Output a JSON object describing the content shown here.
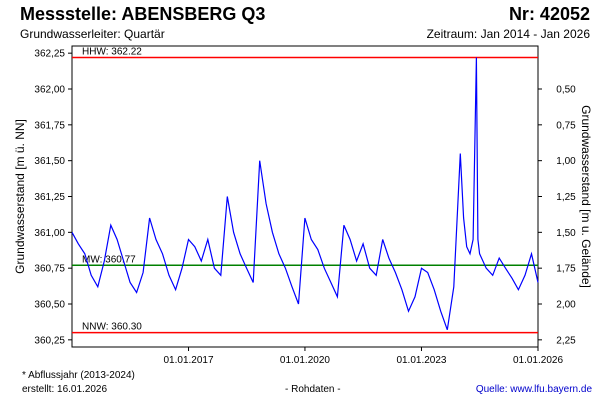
{
  "header": {
    "title_left": "Messstelle: ABENSBERG Q3",
    "title_right": "Nr: 42052",
    "subtitle_left": "Grundwasserleiter: Quartär",
    "subtitle_right": "Zeitraum: Jan 2014 - Jan 2026"
  },
  "footer": {
    "footnote": "* Abflussjahr (2013-2024)",
    "created": "erstellt:  16.01.2026",
    "rawdata": "- Rohdaten -",
    "source": "Quelle:  www.lfu.bayern.de"
  },
  "colors": {
    "series": "#0000ff",
    "hhw": "#ff0000",
    "nnw": "#ff0000",
    "mw": "#008000"
  },
  "chart_data": {
    "type": "line",
    "ylabel": "Grundwasserstand [m ü. NN]",
    "ylabel_right": "Grundwasserstand [m u. Gelände]",
    "ylim": [
      360.2,
      362.3
    ],
    "y_ticks": [
      "362,25",
      "362,00",
      "361,75",
      "361,50",
      "361,25",
      "361,00",
      "360,75",
      "360,50",
      "360,25"
    ],
    "y_tick_values": [
      362.25,
      362.0,
      361.75,
      361.5,
      361.25,
      361.0,
      360.75,
      360.5,
      360.25
    ],
    "y2_ticks": [
      "0,50",
      "0,75",
      "1,00",
      "1,25",
      "1,50",
      "1,75",
      "2,00",
      "2,25"
    ],
    "y2_tick_values_nn": [
      362.0,
      361.75,
      361.5,
      361.25,
      361.0,
      360.75,
      360.5,
      360.25
    ],
    "xlim": [
      "2014-01-01",
      "2026-01-01"
    ],
    "x_ticks": [
      "01.01.2017",
      "01.01.2020",
      "01.01.2023",
      "01.01.2026"
    ],
    "x_tick_dates": [
      "2017-01-01",
      "2020-01-01",
      "2023-01-01",
      "2026-01-01"
    ],
    "reference_lines": [
      {
        "label": "HHW: 362.22",
        "value": 362.22,
        "color": "#ff0000"
      },
      {
        "label": "MW: 360.77",
        "value": 360.77,
        "color": "#008000"
      },
      {
        "label": "NNW: 360.30",
        "value": 360.3,
        "color": "#ff0000"
      }
    ],
    "series": [
      {
        "x": [
          "2014-01-01",
          "2014-03-01",
          "2014-05-01",
          "2014-07-01",
          "2014-09-01",
          "2014-11-01",
          "2015-01-01",
          "2015-03-01",
          "2015-05-01",
          "2015-07-01",
          "2015-09-01",
          "2015-11-01",
          "2016-01-01",
          "2016-03-01",
          "2016-05-01",
          "2016-07-01",
          "2016-09-01",
          "2016-11-01",
          "2017-01-01",
          "2017-03-01",
          "2017-05-01",
          "2017-07-01",
          "2017-09-01",
          "2017-11-01",
          "2018-01-01",
          "2018-03-01",
          "2018-05-01",
          "2018-07-01",
          "2018-09-01",
          "2018-11-01",
          "2019-01-01",
          "2019-03-01",
          "2019-05-01",
          "2019-07-01",
          "2019-09-01",
          "2019-11-01",
          "2020-01-01",
          "2020-03-01",
          "2020-05-01",
          "2020-07-01",
          "2020-09-01",
          "2020-11-01",
          "2021-01-01",
          "2021-03-01",
          "2021-05-01",
          "2021-07-01",
          "2021-09-01",
          "2021-11-01",
          "2022-01-01",
          "2022-03-01",
          "2022-05-01",
          "2022-07-01",
          "2022-09-01",
          "2022-11-01",
          "2023-01-01",
          "2023-03-01",
          "2023-05-01",
          "2023-07-01",
          "2023-09-01",
          "2023-11-01",
          "2024-01-01",
          "2024-02-01",
          "2024-03-01",
          "2024-04-01",
          "2024-05-01",
          "2024-06-01",
          "2024-06-15",
          "2024-07-01",
          "2024-09-01",
          "2024-11-01",
          "2025-01-01",
          "2025-03-01",
          "2025-05-01",
          "2025-07-01",
          "2025-09-01",
          "2025-11-01",
          "2026-01-01"
        ],
        "y": [
          361.0,
          360.92,
          360.85,
          360.7,
          360.62,
          360.8,
          361.05,
          360.95,
          360.8,
          360.65,
          360.58,
          360.72,
          361.1,
          360.95,
          360.85,
          360.7,
          360.6,
          360.75,
          360.95,
          360.9,
          360.8,
          360.95,
          360.75,
          360.7,
          361.25,
          361.0,
          360.85,
          360.75,
          360.65,
          361.5,
          361.2,
          361.0,
          360.85,
          360.75,
          360.62,
          360.5,
          361.1,
          360.95,
          360.88,
          360.75,
          360.65,
          360.55,
          361.05,
          360.95,
          360.8,
          360.92,
          360.75,
          360.7,
          360.95,
          360.82,
          360.72,
          360.6,
          360.45,
          360.55,
          360.75,
          360.72,
          360.6,
          360.45,
          360.32,
          360.62,
          361.55,
          361.1,
          360.9,
          360.85,
          360.95,
          362.22,
          360.95,
          360.85,
          360.75,
          360.7,
          360.82,
          360.75,
          360.68,
          360.6,
          360.7,
          360.85,
          360.65
        ]
      }
    ]
  }
}
